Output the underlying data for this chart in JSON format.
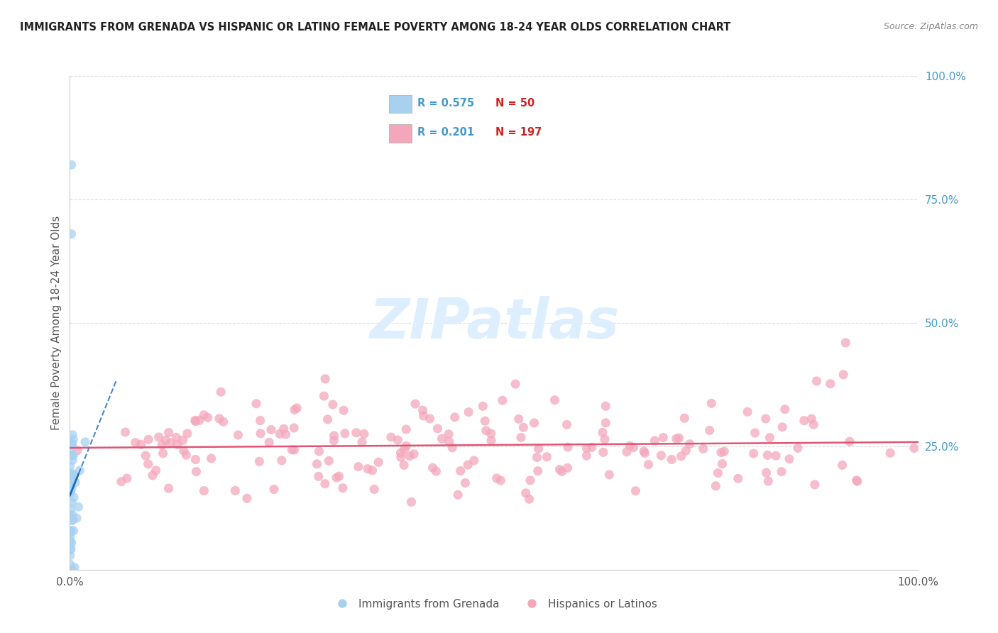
{
  "title": "IMMIGRANTS FROM GRENADA VS HISPANIC OR LATINO FEMALE POVERTY AMONG 18-24 YEAR OLDS CORRELATION CHART",
  "source": "Source: ZipAtlas.com",
  "ylabel": "Female Poverty Among 18-24 Year Olds",
  "legend_blue_r": "0.575",
  "legend_blue_n": "50",
  "legend_pink_r": "0.201",
  "legend_pink_n": "197",
  "legend_label_blue": "Immigrants from Grenada",
  "legend_label_pink": "Hispanics or Latinos",
  "blue_color": "#a8d1f0",
  "pink_color": "#f4a7bb",
  "blue_line_color": "#1a6bbf",
  "pink_line_color": "#e05575",
  "legend_r_color": "#4499cc",
  "legend_n_color": "#cc2222",
  "background_color": "#ffffff",
  "watermark_color": "#ddeeff",
  "grid_color": "#dddddd",
  "ytick_color": "#4499cc",
  "xtick_color": "#555555",
  "title_color": "#222222",
  "ylabel_color": "#555555"
}
